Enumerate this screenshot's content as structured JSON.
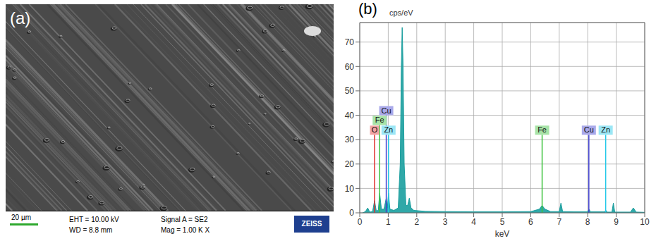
{
  "image_panel": {
    "label": "(a)",
    "scale_bar": "20 µm",
    "info": [
      [
        "EHT = 10.00 kV",
        "WD = 8.8 mm"
      ],
      [
        "Signal A = SE2",
        "Mag = 1.00 K X"
      ]
    ],
    "logo": "ZEISS"
  },
  "chart_data": {
    "type": "area",
    "label": "(b)",
    "y_label": "cps/eV",
    "x_label": "keV",
    "x": [
      0.1,
      0.2,
      0.28,
      0.35,
      0.45,
      0.52,
      0.58,
      0.65,
      0.7,
      0.76,
      0.85,
      0.93,
      0.97,
      1.01,
      1.06,
      1.2,
      1.35,
      1.42,
      1.46,
      1.49,
      1.52,
      1.56,
      1.62,
      1.68,
      1.74,
      1.8,
      1.9,
      2.1,
      2.3,
      3,
      4,
      5,
      6,
      6.3,
      6.4,
      6.5,
      6.7,
      7,
      7.06,
      7.12,
      7.5,
      8,
      8.04,
      8.1,
      8.6,
      8.63,
      8.7,
      8.85,
      8.9,
      8.95,
      9.5,
      9.6,
      9.7,
      10
    ],
    "values": [
      0,
      0.5,
      2,
      0.3,
      0.5,
      5,
      0.8,
      1,
      8,
      1.5,
      1.5,
      6,
      2,
      8,
      1.5,
      1,
      2,
      20,
      60,
      76,
      60,
      20,
      3,
      3,
      6,
      2,
      1,
      0.8,
      0.6,
      0.5,
      0.4,
      0.4,
      0.5,
      1.5,
      3,
      1.5,
      0.5,
      0.5,
      4,
      0.5,
      0.4,
      0.4,
      1.5,
      0.4,
      0.4,
      1,
      0.3,
      0.3,
      4,
      0.3,
      0.3,
      2,
      0.3,
      0.2
    ],
    "color": "#1a9e9e",
    "xlim": [
      0,
      10
    ],
    "xticks": [
      0,
      1,
      2,
      3,
      4,
      5,
      6,
      7,
      8,
      9,
      10
    ],
    "ylim": [
      0,
      78
    ],
    "yticks": [
      0,
      10,
      20,
      30,
      40,
      50,
      60,
      70
    ],
    "grid": true,
    "annotations": [
      {
        "text": "O",
        "x": 0.52,
        "y": 32,
        "color": "#e03030"
      },
      {
        "text": "Fe",
        "x": 0.7,
        "y": 36,
        "color": "#3cc23c"
      },
      {
        "text": "Cu",
        "x": 0.93,
        "y": 40,
        "color": "#4040d0"
      },
      {
        "text": "Zn",
        "x": 1.01,
        "y": 32,
        "color": "#22c8e8"
      },
      {
        "text": "Fe",
        "x": 6.4,
        "y": 32,
        "color": "#3cc23c"
      },
      {
        "text": "Cu",
        "x": 8.04,
        "y": 32,
        "color": "#4040d0"
      },
      {
        "text": "Zn",
        "x": 8.63,
        "y": 32,
        "color": "#22c8e8"
      }
    ]
  }
}
